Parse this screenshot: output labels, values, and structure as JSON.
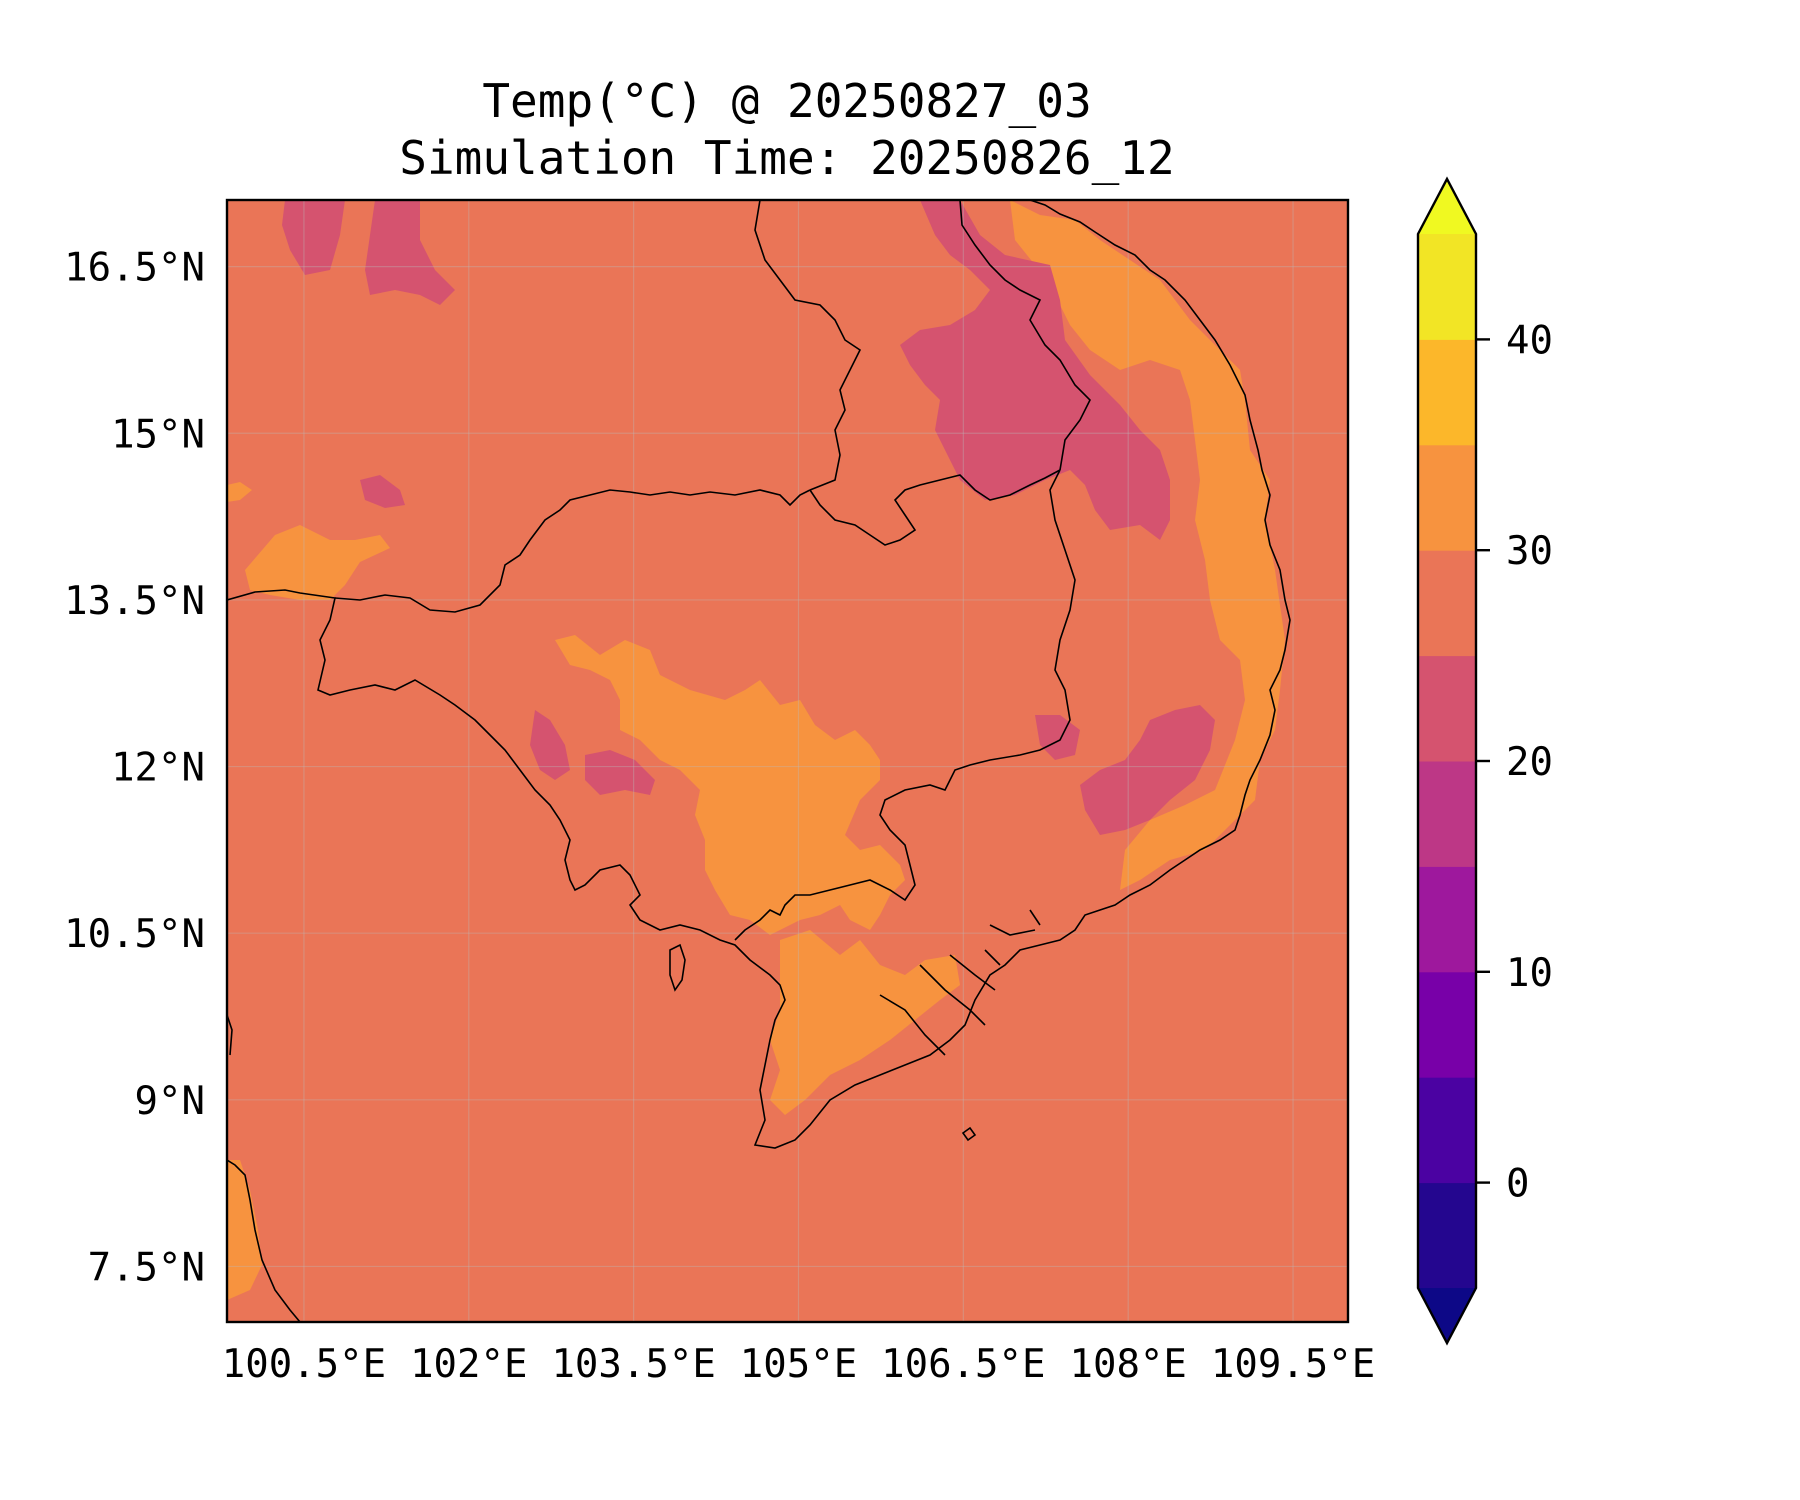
{
  "title": {
    "line1": "Temp(°C) @ 20250827_03",
    "line2": "Simulation Time: 20250826_12"
  },
  "map": {
    "lon_range": [
      99.8,
      110.0
    ],
    "lat_range": [
      7.0,
      17.1
    ],
    "grid": true,
    "base_color": "#ea7557",
    "x_ticks": [
      "100.5°E",
      "102°E",
      "103.5°E",
      "105°E",
      "106.5°E",
      "108°E",
      "109.5°E"
    ],
    "y_ticks": [
      "16.5°N",
      "15°N",
      "13.5°N",
      "12°N",
      "10.5°N",
      "9°N",
      "7.5°N"
    ],
    "field": "temperature",
    "units": "°C",
    "colors": {
      "band_25_30": "#ea7557",
      "band_30_35": "#f7933f",
      "band_20_25": "#d5536f"
    }
  },
  "colorbar": {
    "range": [
      -5,
      45
    ],
    "extend": "both",
    "levels": [
      {
        "from": -5,
        "to": 0,
        "color": "#24068f"
      },
      {
        "from": 0,
        "to": 5,
        "color": "#4b02a2"
      },
      {
        "from": 5,
        "to": 10,
        "color": "#7800a8"
      },
      {
        "from": 10,
        "to": 15,
        "color": "#9e189d"
      },
      {
        "from": 15,
        "to": 20,
        "color": "#bd3786"
      },
      {
        "from": 20,
        "to": 25,
        "color": "#d5536f"
      },
      {
        "from": 25,
        "to": 30,
        "color": "#ea7557"
      },
      {
        "from": 30,
        "to": 35,
        "color": "#f7933f"
      },
      {
        "from": 35,
        "to": 40,
        "color": "#fcb72a"
      },
      {
        "from": 40,
        "to": 45,
        "color": "#f2e525"
      }
    ],
    "under_color": "#0d0887",
    "over_color": "#f0f921",
    "tick_values": [
      0,
      10,
      20,
      30,
      40
    ],
    "tick_labels": [
      "0",
      "10",
      "20",
      "30",
      "40"
    ]
  }
}
